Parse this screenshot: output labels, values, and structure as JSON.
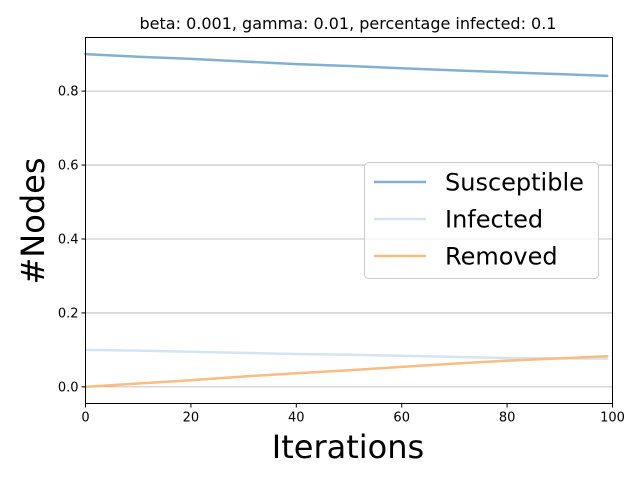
{
  "chart_data": {
    "type": "line",
    "title": "beta: 0.001, gamma: 0.01, percentage infected: 0.1",
    "xlabel": "Iterations",
    "ylabel": "#Nodes",
    "xlim": [
      0,
      100
    ],
    "ylim": [
      -0.045,
      0.945
    ],
    "xticks": [
      0,
      20,
      40,
      60,
      80,
      100
    ],
    "xtick_labels": [
      "0",
      "20",
      "40",
      "60",
      "80",
      "100"
    ],
    "yticks": [
      0.0,
      0.2,
      0.4,
      0.6,
      0.8
    ],
    "ytick_labels": [
      "0.0",
      "0.2",
      "0.4",
      "0.6",
      "0.8"
    ],
    "grid": "horizontal",
    "legend_position": "center-right",
    "x": [
      0,
      10,
      20,
      30,
      40,
      50,
      60,
      70,
      80,
      90,
      99
    ],
    "series": [
      {
        "name": "Susceptible",
        "color": "#82b0d2",
        "values": [
          0.9,
          0.893,
          0.887,
          0.88,
          0.873,
          0.868,
          0.862,
          0.856,
          0.851,
          0.846,
          0.841
        ]
      },
      {
        "name": "Infected",
        "color": "#d6e4f2",
        "values": [
          0.1,
          0.098,
          0.095,
          0.092,
          0.089,
          0.087,
          0.084,
          0.081,
          0.078,
          0.077,
          0.076
        ]
      },
      {
        "name": "Removed",
        "color": "#fbbc82",
        "values": [
          0.0,
          0.009,
          0.018,
          0.028,
          0.037,
          0.045,
          0.054,
          0.063,
          0.071,
          0.077,
          0.083
        ]
      }
    ]
  }
}
